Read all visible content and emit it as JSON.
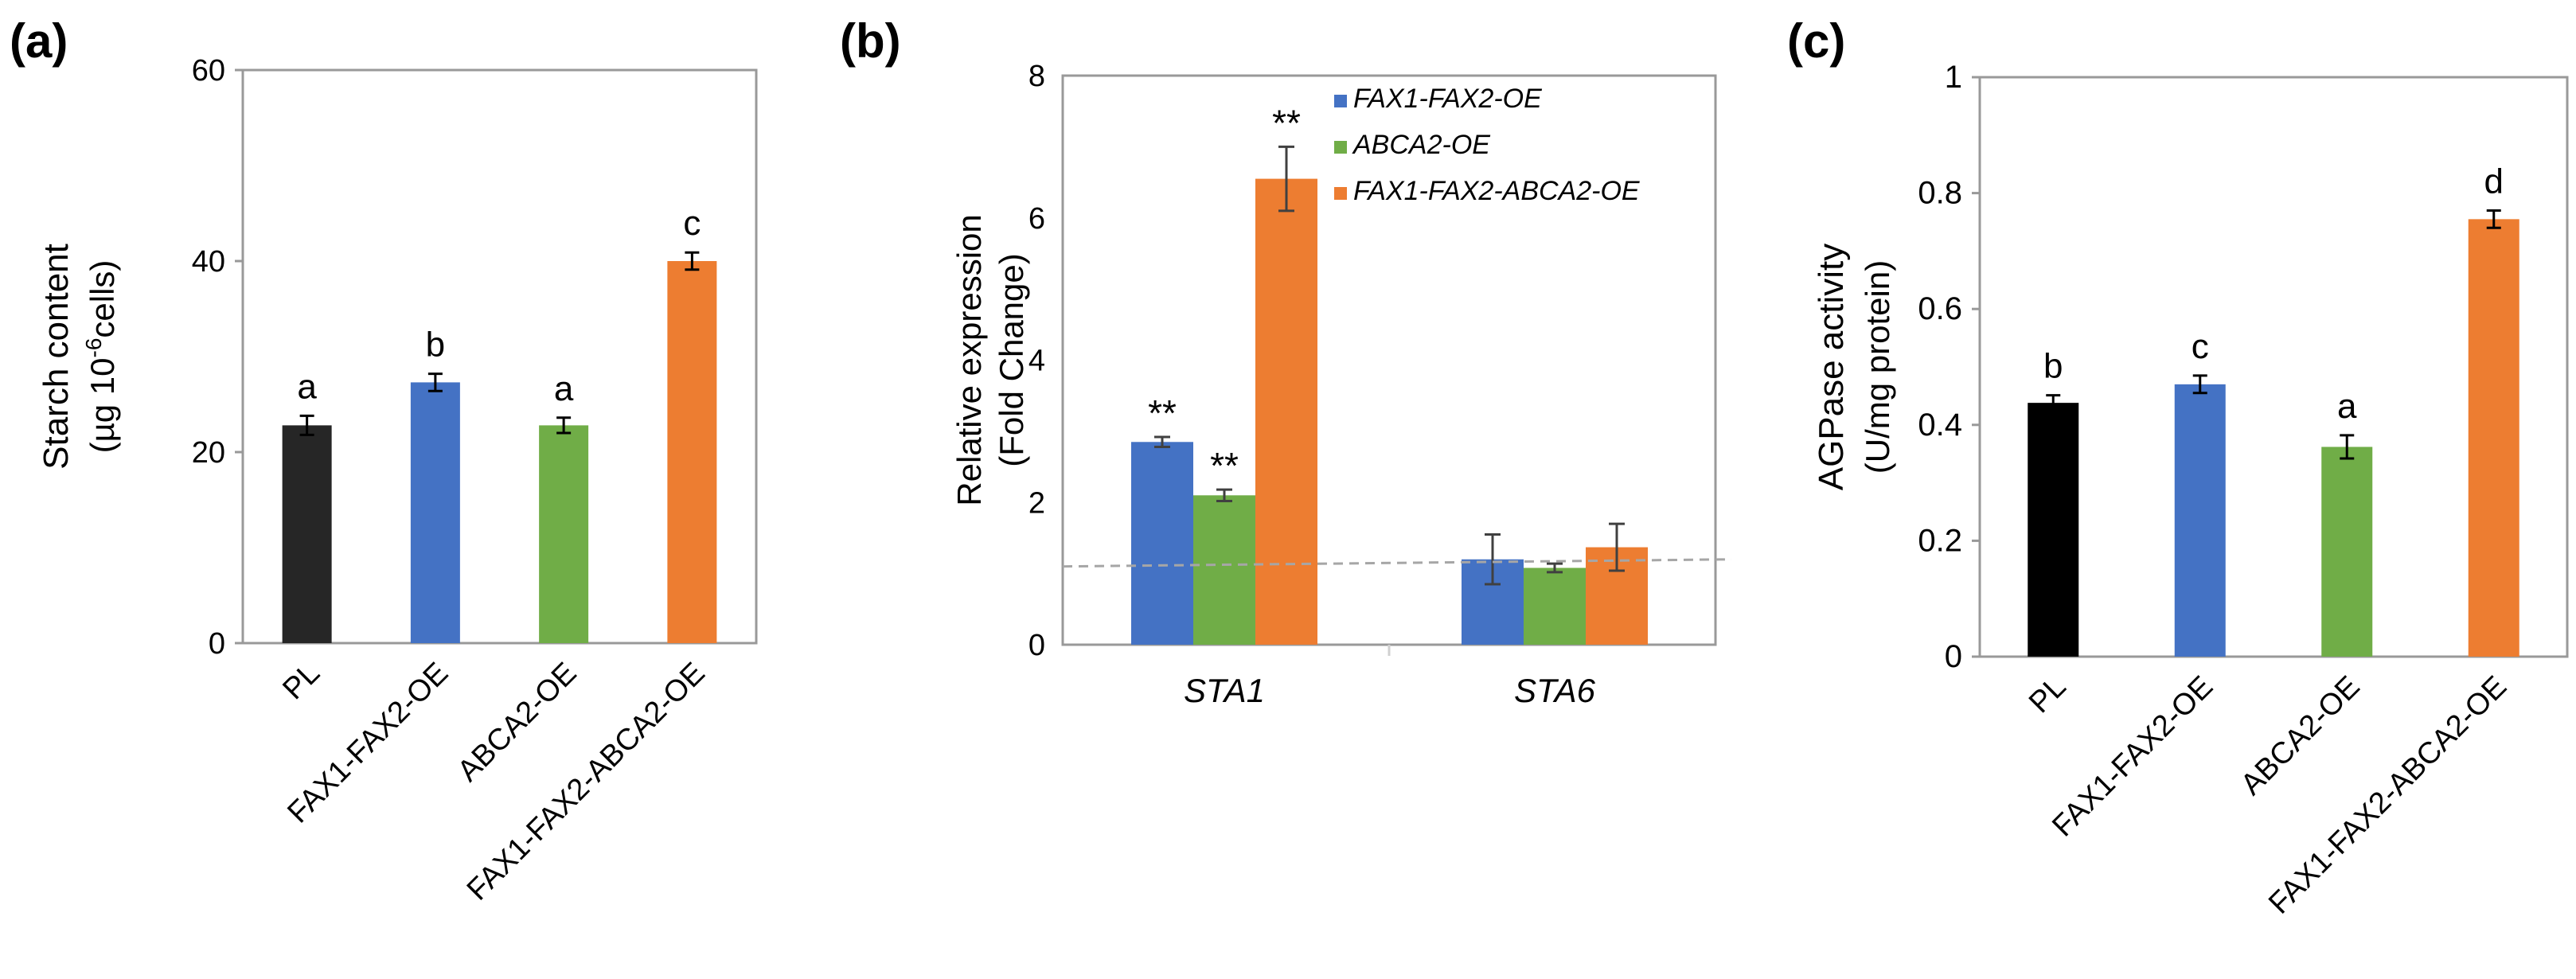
{
  "panel_labels": [
    "(a)",
    "(b)",
    "(c)"
  ],
  "colors": {
    "black": "#262626",
    "blue": "#4472C4",
    "green": "#70AD47",
    "orange": "#ED7D31",
    "axis": "#999999",
    "error": "#404040",
    "baseline": "#a6a6a6"
  },
  "chart_data": [
    {
      "type": "bar",
      "panel": "(a)",
      "categories": [
        "PL",
        "FAX1-FAX2-OE",
        "ABCA2-OE",
        "FAX1-FAX2-ABCA2-OE"
      ],
      "values": [
        22.8,
        27.3,
        22.8,
        40.0
      ],
      "errors": [
        1.0,
        0.9,
        0.8,
        0.9
      ],
      "letters": [
        "a",
        "b",
        "a",
        "c"
      ],
      "bar_colors": [
        "#262626",
        "#4472C4",
        "#70AD47",
        "#ED7D31"
      ],
      "ylabel_line1": "Starch content",
      "ylabel_line2_prefix": "(µg 10",
      "ylabel_line2_sup": "-6",
      "ylabel_line2_suffix": "cells)",
      "ylim": [
        0,
        60
      ],
      "yticks": [
        "0",
        "20",
        "40",
        "60"
      ],
      "ytick_values": [
        0,
        20,
        40,
        60
      ],
      "grid": false
    },
    {
      "type": "bar",
      "panel": "(b)",
      "categories": [
        "STA1",
        "STA6"
      ],
      "series": [
        {
          "name": "FAX1-FAX2-OE",
          "values": [
            2.85,
            1.2
          ],
          "errors": [
            0.07,
            0.35
          ],
          "marks": [
            "**",
            ""
          ]
        },
        {
          "name": "ABCA2-OE",
          "values": [
            2.1,
            1.08
          ],
          "errors": [
            0.08,
            0.06
          ],
          "marks": [
            "**",
            ""
          ]
        },
        {
          "name": "FAX1-FAX2-ABCA2-OE",
          "values": [
            6.55,
            1.37
          ],
          "errors": [
            0.45,
            0.33
          ],
          "marks": [
            "**",
            ""
          ]
        }
      ],
      "reference_line": [
        1.1,
        1.2
      ],
      "ylabel_line1": "Relative expression",
      "ylabel_line2": "(Fold Change)",
      "ylim": [
        0,
        8
      ],
      "yticks": [
        "0",
        "2",
        "4",
        "6",
        "8"
      ],
      "ytick_values": [
        0,
        2,
        4,
        6,
        8
      ],
      "legend_position": "top-right",
      "grid": false
    },
    {
      "type": "bar",
      "panel": "(c)",
      "categories": [
        "PL",
        "FAX1-FAX2-OE",
        "ABCA2-OE",
        "FAX1-FAX2-ABCA2-OE"
      ],
      "values": [
        0.438,
        0.47,
        0.362,
        0.755
      ],
      "errors": [
        0.013,
        0.015,
        0.02,
        0.015
      ],
      "letters": [
        "b",
        "c",
        "a",
        "d"
      ],
      "bar_colors": [
        "#000000",
        "#4472C4",
        "#70AD47",
        "#ED7D31"
      ],
      "ylabel_line1": "AGPase  activity",
      "ylabel_line2": "(U/mg protein)",
      "ylim": [
        0,
        1
      ],
      "yticks": [
        "0",
        "0.2",
        "0.4",
        "0.6",
        "0.8",
        "1"
      ],
      "ytick_values": [
        0,
        0.2,
        0.4,
        0.6,
        0.8,
        1
      ],
      "grid": false
    }
  ]
}
